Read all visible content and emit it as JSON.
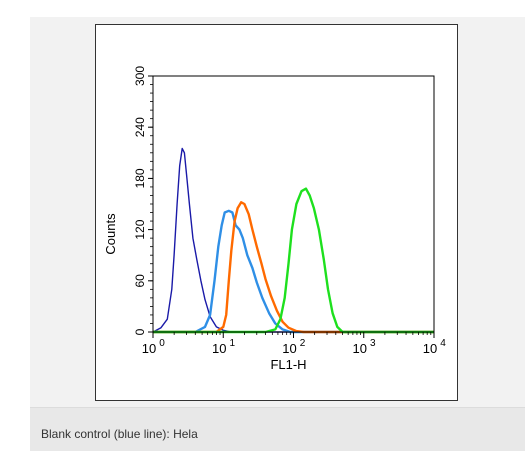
{
  "caption": "Blank control (blue line): Hela",
  "colors": {
    "blank_control": "#1a1aa8",
    "blue_sample": "#2f8fe6",
    "orange_sample": "#ff6a00",
    "green_sample": "#1ee01e"
  },
  "chart_data": {
    "type": "line",
    "xlabel": "FL1-H",
    "ylabel": "Counts",
    "xscale": "log",
    "xlim": [
      1,
      10000
    ],
    "ylim": [
      0,
      300
    ],
    "y_ticks": [
      "0",
      "60",
      "120",
      "180",
      "240",
      "300"
    ],
    "x_ticks": [
      {
        "base": "10",
        "exp": "0",
        "value": 1
      },
      {
        "base": "10",
        "exp": "1",
        "value": 10
      },
      {
        "base": "10",
        "exp": "2",
        "value": 100
      },
      {
        "base": "10",
        "exp": "3",
        "value": 1000
      },
      {
        "base": "10",
        "exp": "4",
        "value": 10000
      }
    ],
    "grid": false,
    "series": [
      {
        "color": "#1a1aa8",
        "points": [
          [
            1.0,
            0
          ],
          [
            1.3,
            5
          ],
          [
            1.6,
            15
          ],
          [
            1.85,
            50
          ],
          [
            2.0,
            90
          ],
          [
            2.2,
            150
          ],
          [
            2.4,
            195
          ],
          [
            2.6,
            215
          ],
          [
            2.8,
            210
          ],
          [
            3.0,
            185
          ],
          [
            3.3,
            150
          ],
          [
            3.7,
            110
          ],
          [
            4.2,
            85
          ],
          [
            4.8,
            60
          ],
          [
            5.5,
            38
          ],
          [
            6.5,
            18
          ],
          [
            8,
            6
          ],
          [
            10,
            2
          ],
          [
            13,
            0
          ],
          [
            10000,
            0
          ]
        ]
      },
      {
        "color": "#2f8fe6",
        "points": [
          [
            1.0,
            0
          ],
          [
            4,
            0
          ],
          [
            5.5,
            6
          ],
          [
            6.5,
            20
          ],
          [
            7.5,
            60
          ],
          [
            8.5,
            100
          ],
          [
            9.5,
            125
          ],
          [
            10.5,
            140
          ],
          [
            12,
            142
          ],
          [
            13.5,
            140
          ],
          [
            15,
            125
          ],
          [
            17,
            120
          ],
          [
            19,
            110
          ],
          [
            22,
            90
          ],
          [
            26,
            75
          ],
          [
            30,
            58
          ],
          [
            36,
            40
          ],
          [
            45,
            22
          ],
          [
            55,
            10
          ],
          [
            70,
            3
          ],
          [
            90,
            0
          ],
          [
            10000,
            0
          ]
        ]
      },
      {
        "color": "#ff6a00",
        "points": [
          [
            1.0,
            0
          ],
          [
            8,
            0
          ],
          [
            10,
            6
          ],
          [
            11,
            20
          ],
          [
            12,
            60
          ],
          [
            13,
            95
          ],
          [
            14.5,
            130
          ],
          [
            16,
            145
          ],
          [
            18,
            152
          ],
          [
            20,
            150
          ],
          [
            23,
            138
          ],
          [
            26,
            120
          ],
          [
            30,
            100
          ],
          [
            35,
            80
          ],
          [
            40,
            62
          ],
          [
            48,
            42
          ],
          [
            58,
            25
          ],
          [
            70,
            12
          ],
          [
            85,
            5
          ],
          [
            110,
            1
          ],
          [
            140,
            0
          ],
          [
            10000,
            0
          ]
        ]
      },
      {
        "color": "#1ee01e",
        "points": [
          [
            1.0,
            0
          ],
          [
            40,
            0
          ],
          [
            55,
            3
          ],
          [
            65,
            15
          ],
          [
            75,
            40
          ],
          [
            85,
            80
          ],
          [
            95,
            120
          ],
          [
            110,
            150
          ],
          [
            130,
            165
          ],
          [
            150,
            168
          ],
          [
            170,
            160
          ],
          [
            195,
            145
          ],
          [
            230,
            120
          ],
          [
            270,
            85
          ],
          [
            310,
            50
          ],
          [
            360,
            22
          ],
          [
            420,
            6
          ],
          [
            500,
            0
          ],
          [
            10000,
            0
          ]
        ]
      }
    ]
  }
}
